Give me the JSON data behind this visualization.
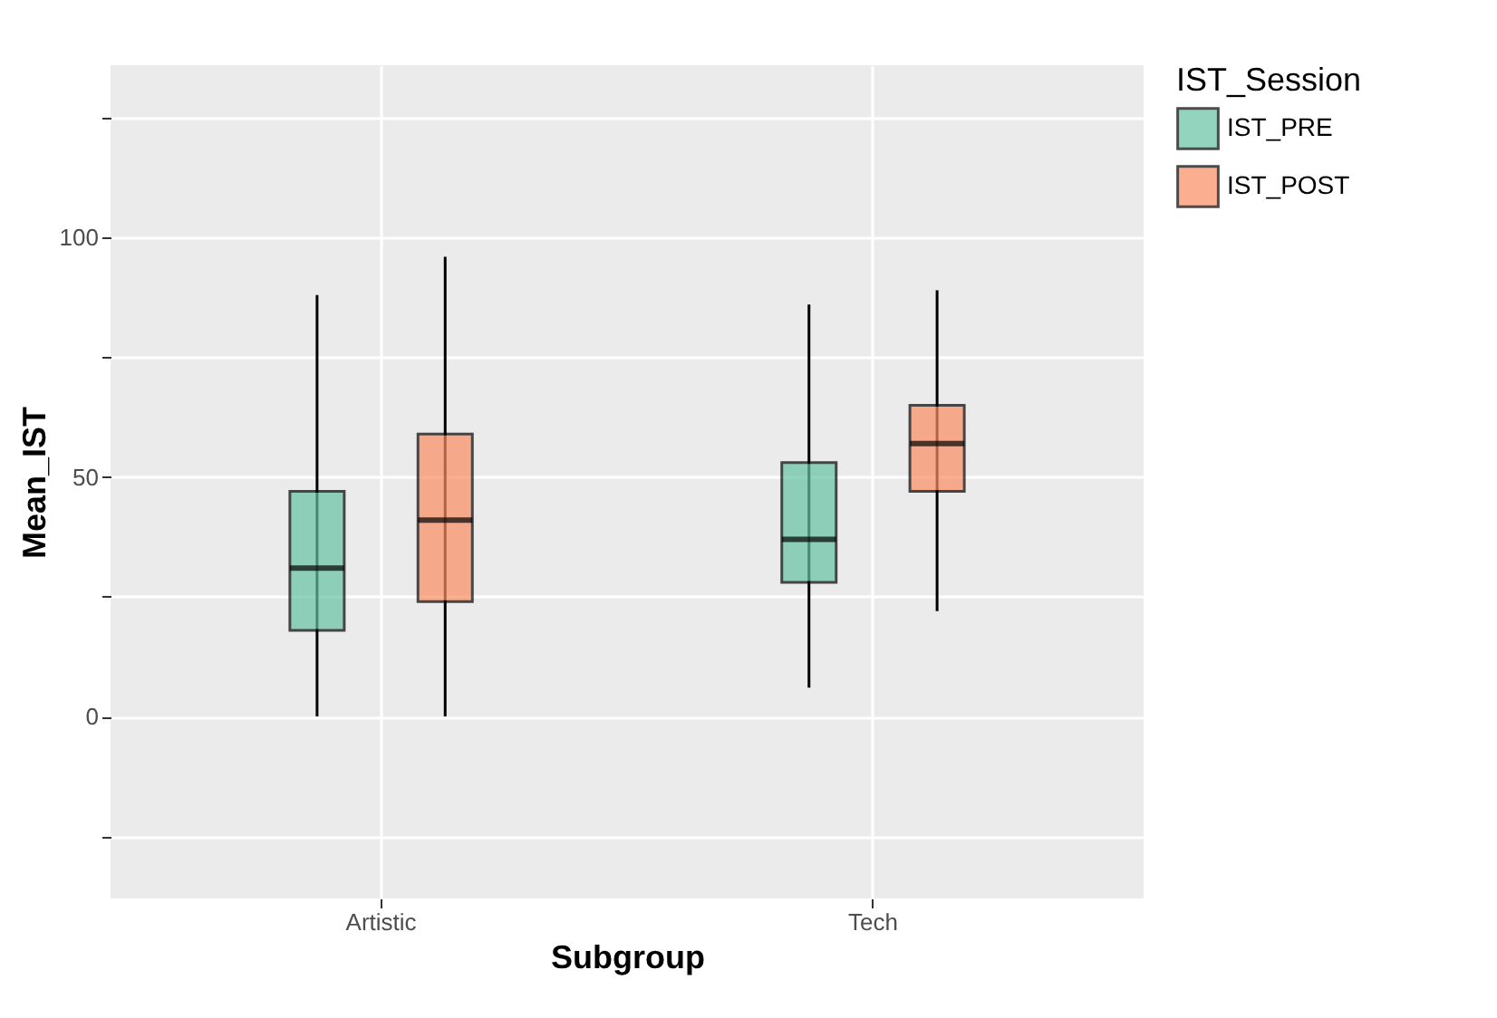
{
  "chart_data": {
    "type": "box",
    "xlabel": "Subgroup",
    "ylabel": "Mean_IST",
    "legend_title": "IST_Session",
    "categories": [
      "Artistic",
      "Tech"
    ],
    "series": [
      {
        "name": "IST_PRE",
        "color": "#66c2a5",
        "boxes": [
          {
            "low": 0,
            "q1": 18,
            "median": 31,
            "q3": 47,
            "high": 88
          },
          {
            "low": 6,
            "q1": 28,
            "median": 37,
            "q3": 53,
            "high": 86
          }
        ]
      },
      {
        "name": "IST_POST",
        "color": "#fc8d62",
        "boxes": [
          {
            "low": 0,
            "q1": 24,
            "median": 41,
            "q3": 59,
            "high": 96
          },
          {
            "low": 22,
            "q1": 47,
            "median": 57,
            "q3": 65,
            "high": 89
          }
        ]
      }
    ],
    "ylim": [
      -38,
      136
    ],
    "yticks": [
      {
        "value": -25,
        "label": null
      },
      0,
      {
        "value": 25,
        "label": null
      },
      50,
      {
        "value": 75,
        "label": null
      },
      100,
      {
        "value": 125,
        "label": null
      }
    ],
    "grid": true,
    "legend": "right"
  }
}
